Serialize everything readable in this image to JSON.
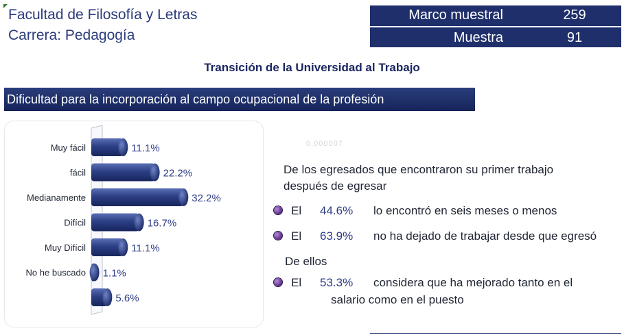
{
  "header": {
    "faculty": "Facultad de Filosofía y Letras",
    "career": "Carrera: Pedagogía"
  },
  "stats": {
    "marco_label": "Marco muestral",
    "marco_value": "259",
    "muestra_label": "Muestra",
    "muestra_value": "91"
  },
  "main_title": "Transición de la Universidad al Trabajo",
  "section_title": "Dificultad para la incorporación al campo ocupacional  de la profesión",
  "faint_text": "0,000007",
  "description": {
    "intro_line1": "De los egresados que encontraron su primer trabajo",
    "intro_line2": "después de egresar",
    "bullets": [
      {
        "el": "El",
        "pct": "44.6%",
        "text": "lo encontró en seis meses o menos"
      },
      {
        "el": "El",
        "pct": "63.9%",
        "text": "no ha dejado de trabajar desde que egresó"
      }
    ],
    "sub_intro": "De ellos",
    "bullet3": {
      "el": "El",
      "pct": "53.3%",
      "text_line1": "considera que ha mejorado tanto en el",
      "text_line2": "salario como en el puesto"
    }
  },
  "chart_data": {
    "type": "bar",
    "orientation": "horizontal",
    "categories": [
      "Muy fácil",
      "fácil",
      "Medianamente",
      "Difícil",
      "Muy Difícil",
      "No he buscado",
      ""
    ],
    "values": [
      11.1,
      22.2,
      32.2,
      16.7,
      11.1,
      1.1,
      5.6
    ],
    "value_labels": [
      "11.1%",
      "22.2%",
      "32.2%",
      "16.7%",
      "11.1%",
      "1.1%",
      "5.6%"
    ],
    "xlim": [
      0,
      35
    ],
    "grid": false,
    "bar_color": "#2c3f85",
    "label_color": "#2d3c86"
  }
}
